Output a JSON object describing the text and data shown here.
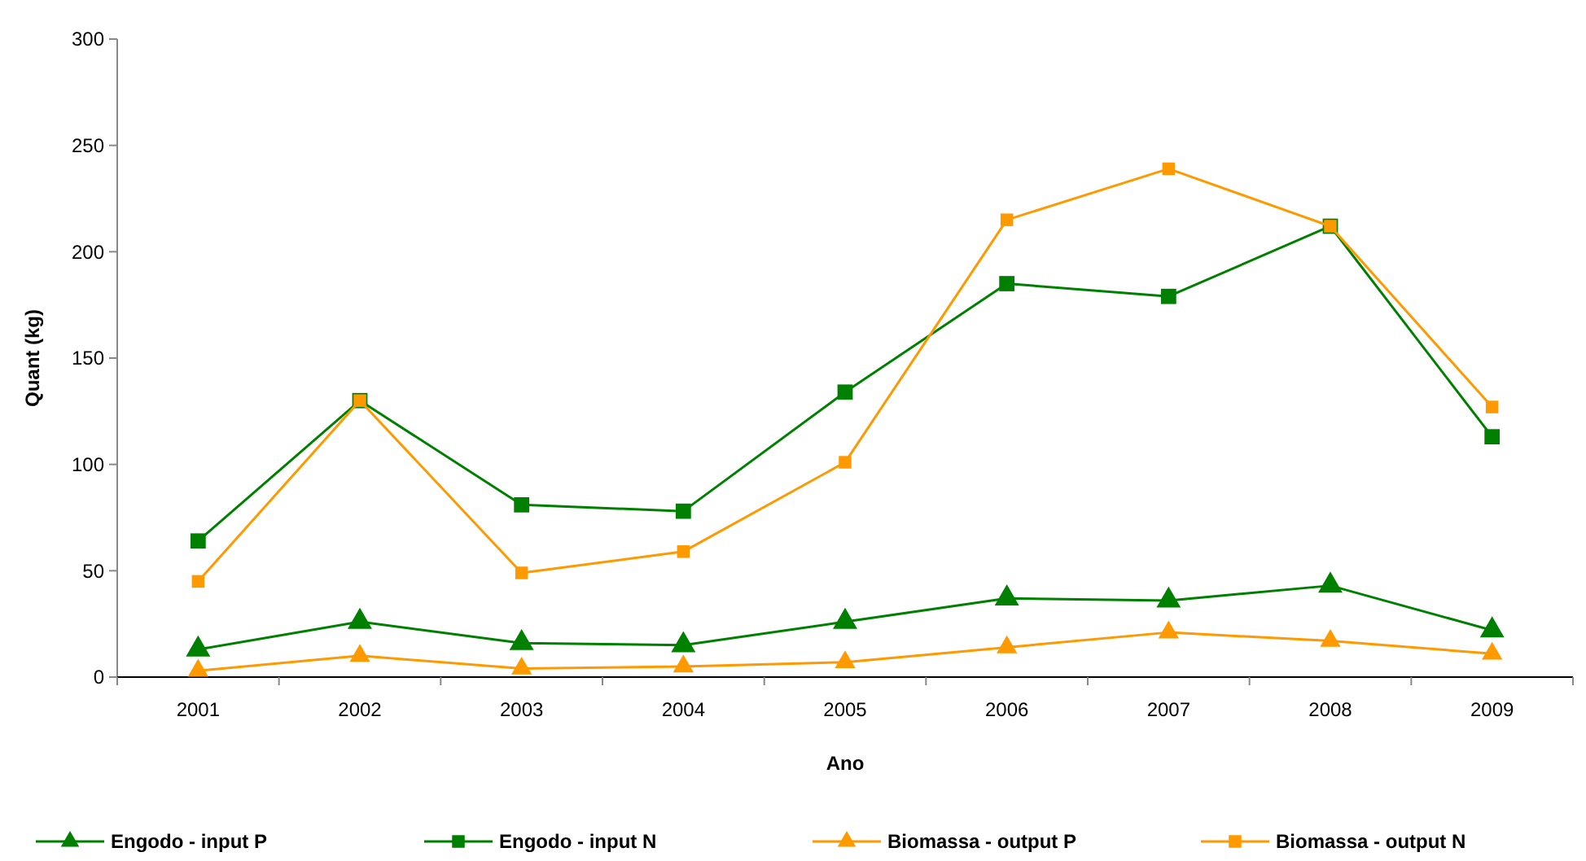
{
  "chart_data": {
    "type": "line",
    "xlabel": "Ano",
    "ylabel": "Quant (kg)",
    "categories": [
      "2001",
      "2002",
      "2003",
      "2004",
      "2005",
      "2006",
      "2007",
      "2008",
      "2009"
    ],
    "series": [
      {
        "name": "Engodo - input P",
        "color": "#008000",
        "marker": "triangle",
        "values": [
          13,
          26,
          16,
          15,
          26,
          37,
          36,
          43,
          22
        ]
      },
      {
        "name": "Engodo - input N",
        "color": "#008000",
        "marker": "square",
        "values": [
          64,
          130,
          81,
          78,
          134,
          185,
          179,
          212,
          113
        ]
      },
      {
        "name": "Biomassa - output P",
        "color": "#ff9900",
        "marker": "triangle",
        "values": [
          3,
          10,
          4,
          5,
          7,
          14,
          21,
          17,
          11
        ]
      },
      {
        "name": "Biomassa - output N",
        "color": "#ff9900",
        "marker": "square",
        "values": [
          45,
          130,
          49,
          59,
          101,
          215,
          239,
          212,
          127
        ]
      }
    ],
    "ylim": [
      0,
      300
    ],
    "yticks": [
      0,
      50,
      100,
      150,
      200,
      250,
      300
    ],
    "grid": false,
    "legend": "bottom",
    "line_style": "solid"
  }
}
